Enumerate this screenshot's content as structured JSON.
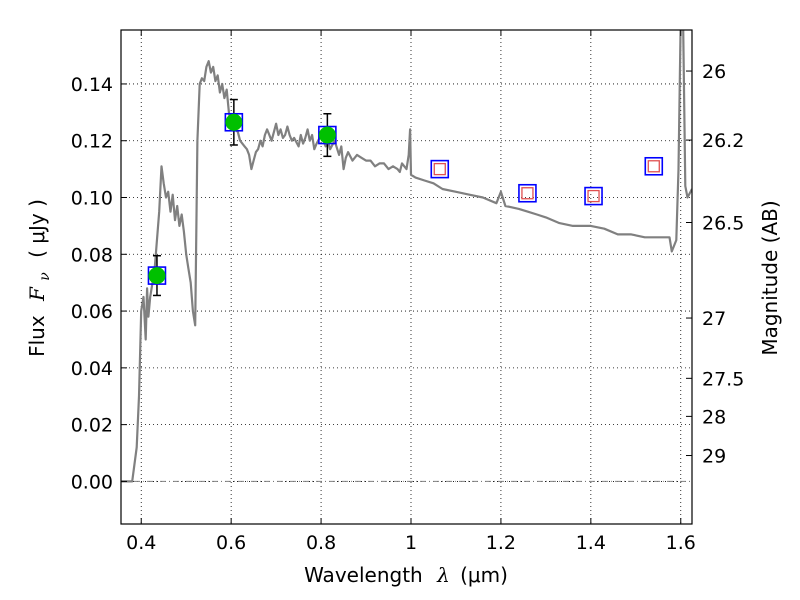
{
  "chart_data": {
    "type": "scatter",
    "xlabel_main": "Wavelength",
    "xlabel_lambda": "λ",
    "xlabel_unit": "(μm)",
    "ylabel_main": "Flux",
    "ylabel_fnu": "F",
    "ylabel_sub": "ν",
    "ylabel_unit": "( μJy )",
    "y2label": "Magnitude (AB)",
    "xlim": [
      0.355,
      1.625
    ],
    "ylim": [
      -0.015,
      0.159
    ],
    "grid": true,
    "x_ticks": [
      {
        "value": 0.4,
        "label": "0.4"
      },
      {
        "value": 0.6,
        "label": "0.6"
      },
      {
        "value": 0.8,
        "label": "0.8"
      },
      {
        "value": 1.0,
        "label": "1"
      },
      {
        "value": 1.2,
        "label": "1.2"
      },
      {
        "value": 1.4,
        "label": "1.4"
      },
      {
        "value": 1.6,
        "label": "1.6"
      }
    ],
    "y_ticks": [
      {
        "value": 0.0,
        "label": "0.00"
      },
      {
        "value": 0.02,
        "label": "0.02"
      },
      {
        "value": 0.04,
        "label": "0.04"
      },
      {
        "value": 0.06,
        "label": "0.06"
      },
      {
        "value": 0.08,
        "label": "0.08"
      },
      {
        "value": 0.1,
        "label": "0.10"
      },
      {
        "value": 0.12,
        "label": "0.12"
      },
      {
        "value": 0.14,
        "label": "0.14"
      }
    ],
    "y2_ticks": [
      {
        "value": 26,
        "label": "26"
      },
      {
        "value": 26.2,
        "label": "26.2"
      },
      {
        "value": 26.5,
        "label": "26.5"
      },
      {
        "value": 27,
        "label": "27"
      },
      {
        "value": 27.5,
        "label": "27.5"
      },
      {
        "value": 28,
        "label": "28"
      },
      {
        "value": 29,
        "label": "29"
      }
    ],
    "model_spectrum": {
      "color": "#808080",
      "x": [
        0.355,
        0.38,
        0.39,
        0.395,
        0.4,
        0.405,
        0.41,
        0.413,
        0.416,
        0.42,
        0.425,
        0.43,
        0.44,
        0.445,
        0.45,
        0.455,
        0.46,
        0.465,
        0.47,
        0.475,
        0.48,
        0.485,
        0.49,
        0.495,
        0.5,
        0.505,
        0.51,
        0.515,
        0.52,
        0.525,
        0.53,
        0.535,
        0.54,
        0.545,
        0.55,
        0.555,
        0.56,
        0.565,
        0.57,
        0.575,
        0.58,
        0.585,
        0.59,
        0.595,
        0.6,
        0.605,
        0.61,
        0.615,
        0.62,
        0.63,
        0.635,
        0.64,
        0.645,
        0.65,
        0.655,
        0.66,
        0.665,
        0.67,
        0.675,
        0.68,
        0.69,
        0.7,
        0.705,
        0.71,
        0.715,
        0.72,
        0.725,
        0.73,
        0.735,
        0.74,
        0.75,
        0.755,
        0.76,
        0.765,
        0.77,
        0.775,
        0.78,
        0.785,
        0.79,
        0.8,
        0.81,
        0.815,
        0.82,
        0.83,
        0.84,
        0.845,
        0.85,
        0.855,
        0.86,
        0.87,
        0.88,
        0.89,
        0.9,
        0.91,
        0.92,
        0.93,
        0.94,
        0.95,
        0.96,
        0.97,
        0.975,
        0.98,
        0.99,
        0.995,
        0.998,
        1.0,
        1.01,
        1.03,
        1.05,
        1.07,
        1.1,
        1.13,
        1.16,
        1.19,
        1.2,
        1.21,
        1.24,
        1.26,
        1.28,
        1.3,
        1.33,
        1.36,
        1.4,
        1.43,
        1.46,
        1.49,
        1.52,
        1.55,
        1.575,
        1.58,
        1.59,
        1.595,
        1.6,
        1.605,
        1.61,
        1.615,
        1.625
      ],
      "y": [
        0.0,
        0.0,
        0.012,
        0.03,
        0.06,
        0.065,
        0.05,
        0.068,
        0.058,
        0.065,
        0.07,
        0.075,
        0.095,
        0.111,
        0.105,
        0.1,
        0.102,
        0.095,
        0.101,
        0.092,
        0.097,
        0.09,
        0.094,
        0.088,
        0.08,
        0.075,
        0.07,
        0.06,
        0.055,
        0.12,
        0.14,
        0.142,
        0.141,
        0.146,
        0.148,
        0.144,
        0.146,
        0.141,
        0.143,
        0.137,
        0.14,
        0.135,
        0.138,
        0.13,
        0.125,
        0.128,
        0.124,
        0.123,
        0.12,
        0.118,
        0.117,
        0.115,
        0.11,
        0.113,
        0.116,
        0.117,
        0.12,
        0.118,
        0.122,
        0.124,
        0.12,
        0.126,
        0.122,
        0.124,
        0.121,
        0.122,
        0.125,
        0.122,
        0.12,
        0.121,
        0.118,
        0.122,
        0.119,
        0.121,
        0.124,
        0.12,
        0.122,
        0.117,
        0.119,
        0.122,
        0.118,
        0.12,
        0.117,
        0.12,
        0.115,
        0.118,
        0.11,
        0.114,
        0.116,
        0.113,
        0.115,
        0.114,
        0.113,
        0.113,
        0.111,
        0.112,
        0.112,
        0.11,
        0.111,
        0.11,
        0.109,
        0.112,
        0.11,
        0.115,
        0.124,
        0.108,
        0.107,
        0.106,
        0.105,
        0.103,
        0.102,
        0.101,
        0.1,
        0.098,
        0.102,
        0.097,
        0.096,
        0.095,
        0.094,
        0.093,
        0.091,
        0.09,
        0.09,
        0.089,
        0.087,
        0.087,
        0.086,
        0.086,
        0.086,
        0.081,
        0.085,
        0.11,
        0.165,
        0.165,
        0.104,
        0.1,
        0.103
      ]
    },
    "zero_line": {
      "y": 0.0,
      "color": "#808080"
    },
    "photometry": [
      {
        "x": 0.435,
        "y": 0.0725,
        "yerr": 0.007,
        "detected": true
      },
      {
        "x": 0.606,
        "y": 0.1265,
        "yerr": 0.008,
        "detected": true
      },
      {
        "x": 0.814,
        "y": 0.122,
        "yerr": 0.0075,
        "detected": true
      },
      {
        "x": 1.064,
        "y": 0.11,
        "yerr": null,
        "detected": false
      },
      {
        "x": 1.259,
        "y": 0.1015,
        "yerr": null,
        "detected": false
      },
      {
        "x": 1.406,
        "y": 0.1005,
        "yerr": null,
        "detected": false
      },
      {
        "x": 1.54,
        "y": 0.111,
        "yerr": null,
        "detected": false
      }
    ],
    "colors": {
      "model_box": "#0000ff",
      "detected_point": "#00c000",
      "upper_limit_box": "#e05050",
      "error_bar": "#000000"
    }
  }
}
